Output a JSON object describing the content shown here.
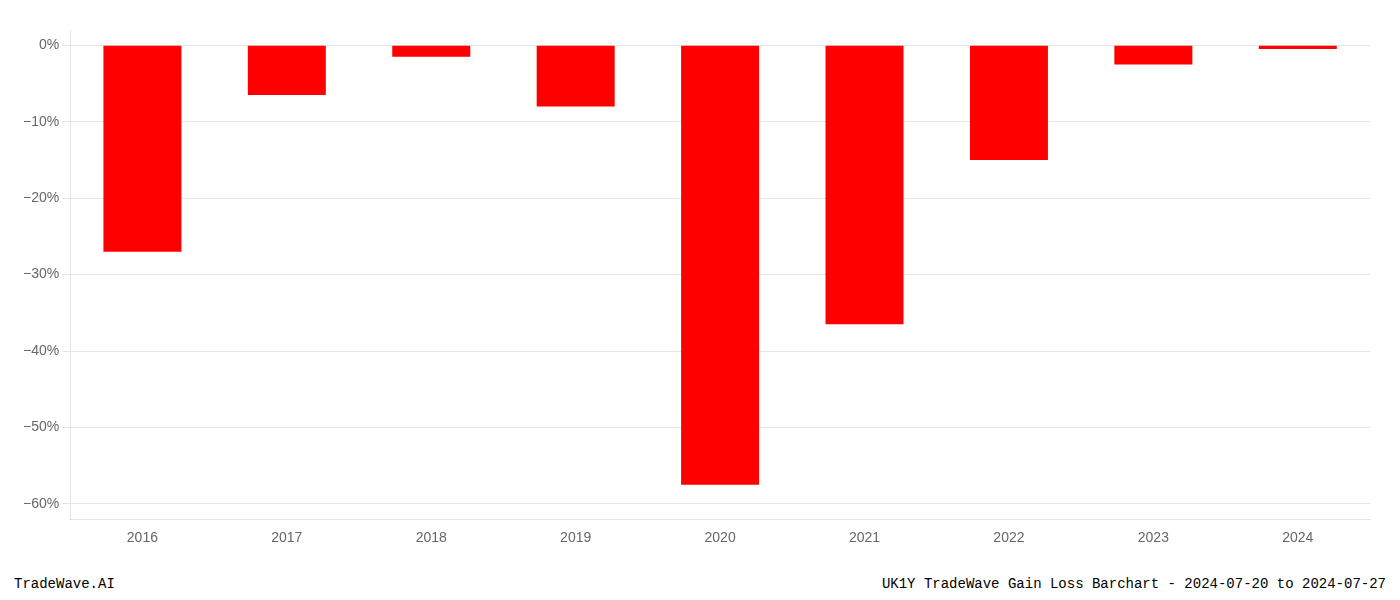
{
  "chart_data": {
    "type": "bar",
    "categories": [
      "2016",
      "2017",
      "2018",
      "2019",
      "2020",
      "2021",
      "2022",
      "2023",
      "2024"
    ],
    "values": [
      -27.0,
      -6.5,
      -1.5,
      -8.0,
      -57.5,
      -36.5,
      -15.0,
      -2.5,
      -0.5
    ],
    "color": "#ff0000",
    "ylim": [
      -62,
      2
    ],
    "yticks": [
      {
        "value": 0,
        "label": "0%"
      },
      {
        "value": -10,
        "label": "−10%"
      },
      {
        "value": -20,
        "label": "−20%"
      },
      {
        "value": -30,
        "label": "−30%"
      },
      {
        "value": -40,
        "label": "−40%"
      },
      {
        "value": -50,
        "label": "−50%"
      },
      {
        "value": -60,
        "label": "−60%"
      }
    ],
    "grid": true,
    "annotations": [
      "TradeWave.AI",
      "UK1Y TradeWave Gain Loss Barchart - 2024-07-20 to 2024-07-27"
    ]
  }
}
